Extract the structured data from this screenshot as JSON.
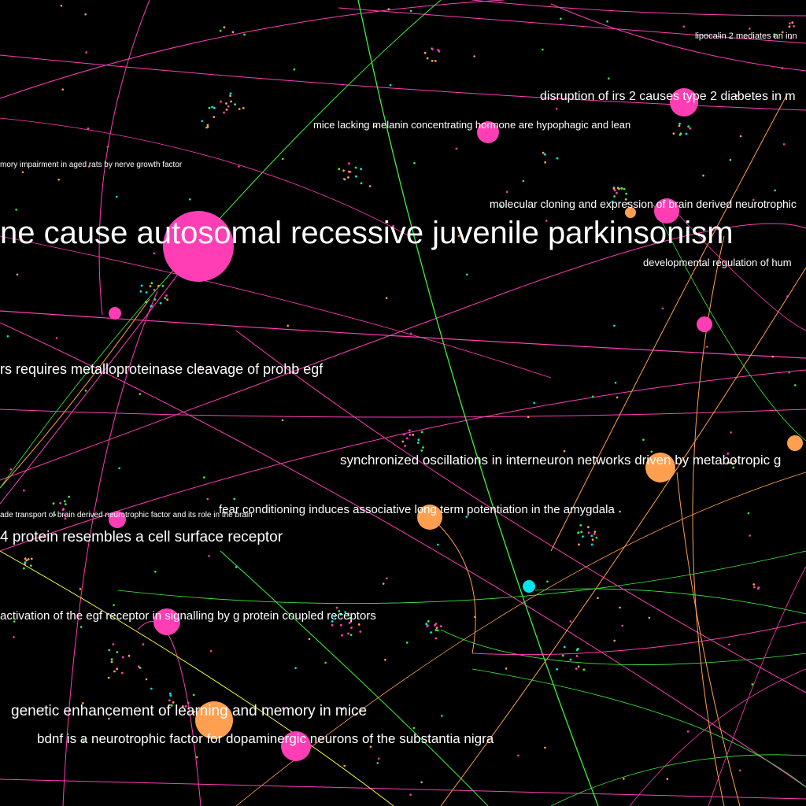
{
  "colors": {
    "background": "#000000",
    "magenta": "#ff3eb5",
    "orange": "#ff9f4f",
    "cyan": "#00e5ee",
    "green": "#3ff03f",
    "yellow": "#f2f23a",
    "label": "#ffffff"
  },
  "labels": {
    "lipocalin": "lipocalin 2 mediates an inn",
    "irs2": "disruption of irs 2 causes type 2 diabetes in m",
    "melanin": "mice lacking melanin concentrating hormone are hypophagic and lean",
    "ngf": "mory impairment in aged rats by nerve growth factor",
    "cloning": "molecular cloning and expression of brain derived neurotrophic",
    "parkinsonism": "ne cause autosomal recessive juvenile parkinsonism",
    "developmental": "developmental regulation of hum",
    "prohb": "rs requires metalloproteinase cleavage of prohb egf",
    "oscillations": "synchronized oscillations in interneuron networks driven by metabotropic g",
    "fear": "fear conditioning induces associative long term potentiation in the amygdala",
    "transport": "ade transport of brain derived neurotrophic factor and its role in the brain",
    "receptor": "4 protein resembles a cell surface receptor",
    "egf": "activation of the egf receptor in signalling by g protein coupled receptors",
    "learning": "genetic enhancement of learning and memory in mice",
    "bdnf": "bdnf is a neurotrophic factor for dopaminergic neurons of the substantia nigra"
  }
}
